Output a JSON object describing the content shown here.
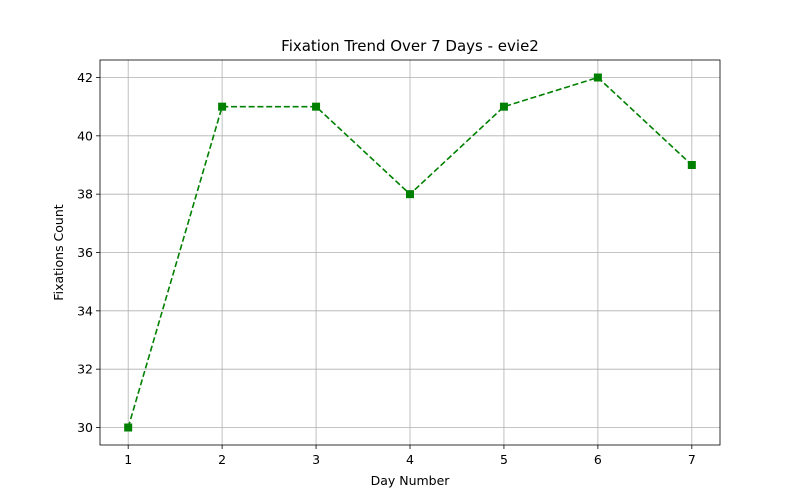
{
  "chart_data": {
    "type": "line",
    "title": "Fixation Trend Over 7 Days - evie2",
    "xlabel": "Day Number",
    "ylabel": "Fixations Count",
    "x": [
      1,
      2,
      3,
      4,
      5,
      6,
      7
    ],
    "series": [
      {
        "values": [
          30,
          41,
          41,
          38,
          41,
          42,
          39
        ]
      }
    ],
    "xlim": [
      0.7,
      7.3
    ],
    "ylim": [
      29.4,
      42.6
    ],
    "xticks": [
      1,
      2,
      3,
      4,
      5,
      6,
      7
    ],
    "yticks": [
      30,
      32,
      34,
      36,
      38,
      40,
      42
    ],
    "grid": true,
    "line_style": "dashed",
    "marker": "square",
    "color": "#008000"
  }
}
